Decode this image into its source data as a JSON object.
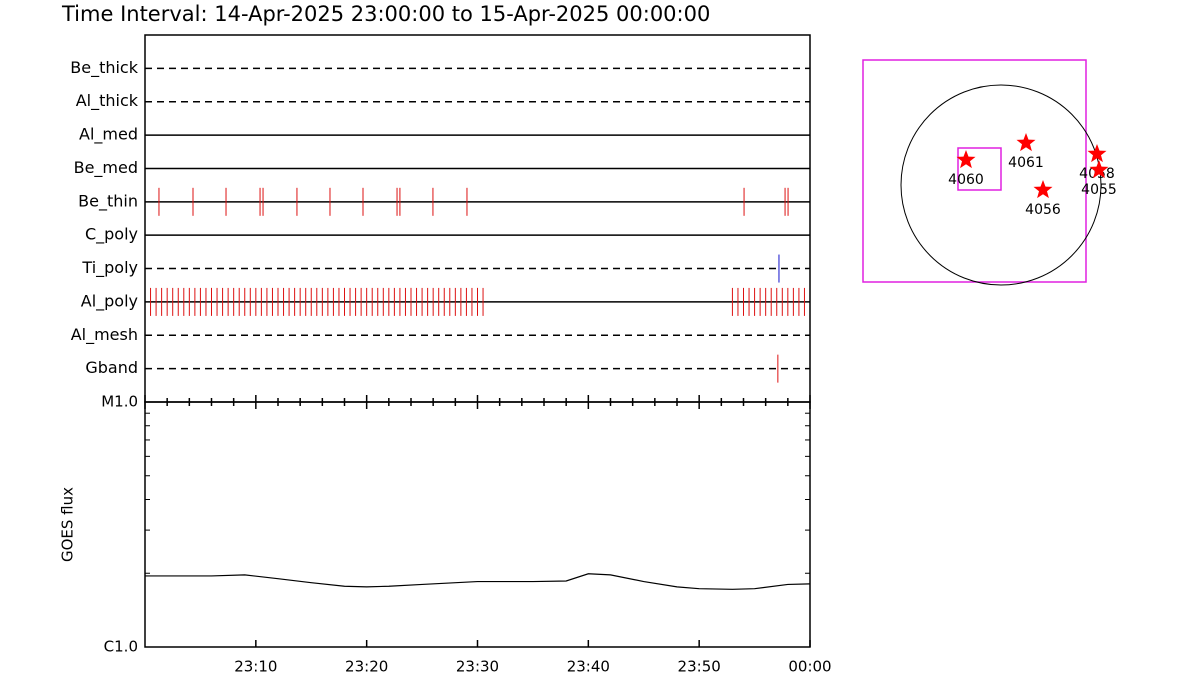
{
  "title": "Time Interval: 14-Apr-2025 23:00:00 to 15-Apr-2025 00:00:00",
  "chart_data": [
    {
      "type": "event",
      "xlim": [
        0,
        60
      ],
      "rows": [
        {
          "name": "Be_thick",
          "line_style": "dashed",
          "events": []
        },
        {
          "name": "Al_thick",
          "line_style": "dashed",
          "events": []
        },
        {
          "name": "Al_med",
          "line_style": "solid",
          "events": []
        },
        {
          "name": "Be_med",
          "line_style": "solid",
          "events": []
        },
        {
          "name": "Be_thin",
          "line_style": "solid",
          "event_color": "#dd1111",
          "events": [
            1.26,
            4.33,
            7.31,
            10.38,
            10.65,
            13.71,
            16.69,
            19.67,
            22.74,
            23.0,
            25.98,
            29.05,
            54.05,
            57.75,
            58.02
          ]
        },
        {
          "name": "C_poly",
          "line_style": "solid",
          "events": []
        },
        {
          "name": "Ti_poly",
          "line_style": "dashed",
          "event_color": "#1111cc",
          "events": [
            57.2
          ]
        },
        {
          "name": "Al_poly",
          "line_style": "solid",
          "event_color": "#dd1111",
          "events": [
            0.5,
            1,
            1.5,
            2,
            2.5,
            3,
            3.5,
            4,
            4.5,
            5,
            5.5,
            6,
            6.5,
            7,
            7.5,
            8,
            8.5,
            9,
            9.5,
            10,
            10.5,
            11,
            11.5,
            12,
            12.5,
            13,
            13.5,
            14,
            14.5,
            15,
            15.5,
            16,
            16.5,
            17,
            17.5,
            18,
            18.5,
            19,
            19.5,
            20,
            20.5,
            21,
            21.5,
            22,
            22.5,
            23,
            23.5,
            24,
            24.5,
            25,
            25.5,
            26,
            26.5,
            27,
            27.5,
            28,
            28.5,
            29,
            29.5,
            30,
            30.5,
            53,
            53.5,
            54,
            54.5,
            55,
            55.5,
            56,
            56.5,
            57,
            57.5,
            58,
            58.5,
            59,
            59.5
          ]
        },
        {
          "name": "Al_mesh",
          "line_style": "dashed",
          "events": []
        },
        {
          "name": "Gband",
          "line_style": "dashed",
          "event_color": "#dd1111",
          "events": [
            57.1
          ]
        }
      ]
    },
    {
      "type": "line",
      "ylabel": "GOES flux",
      "log_scale": true,
      "color": "#000000",
      "xlim": [
        0,
        60
      ],
      "xticks": [
        {
          "value": 10,
          "label": "23:10"
        },
        {
          "value": 20,
          "label": "23:20"
        },
        {
          "value": 30,
          "label": "23:30"
        },
        {
          "value": 40,
          "label": "23:40"
        },
        {
          "value": 50,
          "label": "23:50"
        },
        {
          "value": 60,
          "label": "00:00"
        }
      ],
      "ylim": [
        1e-06,
        1e-05
      ],
      "yticks": [
        {
          "value": 1e-06,
          "label": "C1.0"
        },
        {
          "value": 1e-05,
          "label": "M1.0"
        }
      ],
      "x": [
        0,
        3,
        6,
        9,
        12,
        15,
        18,
        20,
        22,
        25,
        30,
        35,
        38,
        40,
        42,
        45,
        48,
        50,
        53,
        55,
        58,
        60
      ],
      "values": [
        1.95e-06,
        1.95e-06,
        1.95e-06,
        1.97e-06,
        1.9e-06,
        1.83e-06,
        1.77e-06,
        1.76e-06,
        1.77e-06,
        1.8e-06,
        1.85e-06,
        1.85e-06,
        1.86e-06,
        1.99e-06,
        1.97e-06,
        1.85e-06,
        1.76e-06,
        1.73e-06,
        1.72e-06,
        1.73e-06,
        1.8e-06,
        1.81e-06
      ]
    }
  ],
  "map": {
    "regions": [
      "4060",
      "4061",
      "4056",
      "4058",
      "4055"
    ]
  }
}
